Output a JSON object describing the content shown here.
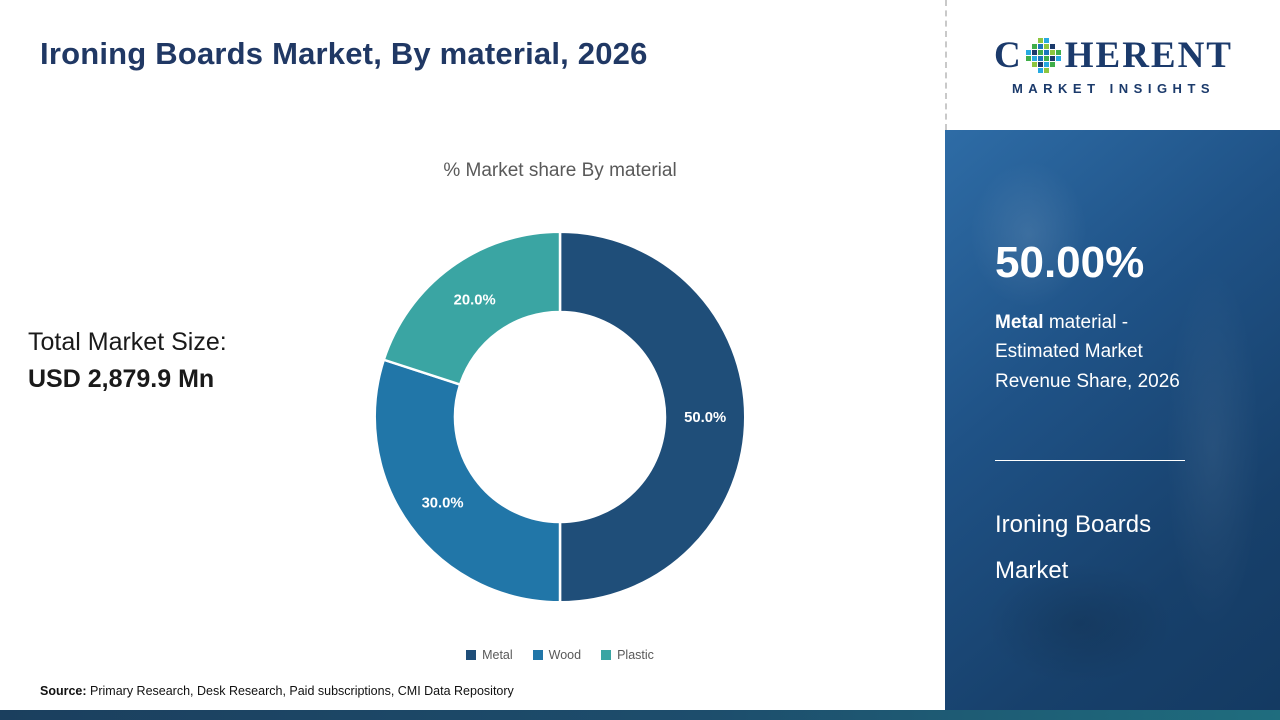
{
  "header": {
    "title": "Ironing Boards Market, By material, 2026"
  },
  "logo": {
    "part1": "C",
    "part2": "HERENT",
    "subtitle": "MARKET INSIGHTS",
    "globe_icon": "mosaic-globe-icon",
    "brand_color": "#1b3a6b"
  },
  "chart_data": {
    "type": "pie",
    "title": "% Market share By material",
    "categories": [
      "Metal",
      "Wood",
      "Plastic"
    ],
    "values": [
      50.0,
      30.0,
      20.0
    ],
    "labels": [
      "50.0%",
      "30.0%",
      "20.0%"
    ],
    "colors": [
      "#1f4e79",
      "#2176a8",
      "#3aa5a3"
    ],
    "donut": true,
    "inner_radius_ratio": 0.567,
    "start_angle_deg": 0,
    "direction": "clockwise",
    "legend_position": "bottom"
  },
  "left_panel": {
    "total_label": "Total Market Size:",
    "total_value": "USD 2,879.9 Mn"
  },
  "right_panel": {
    "share_value": "50.00%",
    "share_bold": "Metal",
    "share_desc": " material - Estimated Market Revenue Share, 2026",
    "market_line1": "Ironing Boards",
    "market_line2": "Market",
    "panel_color": "#1f5286"
  },
  "footer": {
    "source_label": "Source:",
    "source_text": " Primary Research, Desk Research, Paid subscriptions, CMI Data Repository"
  }
}
